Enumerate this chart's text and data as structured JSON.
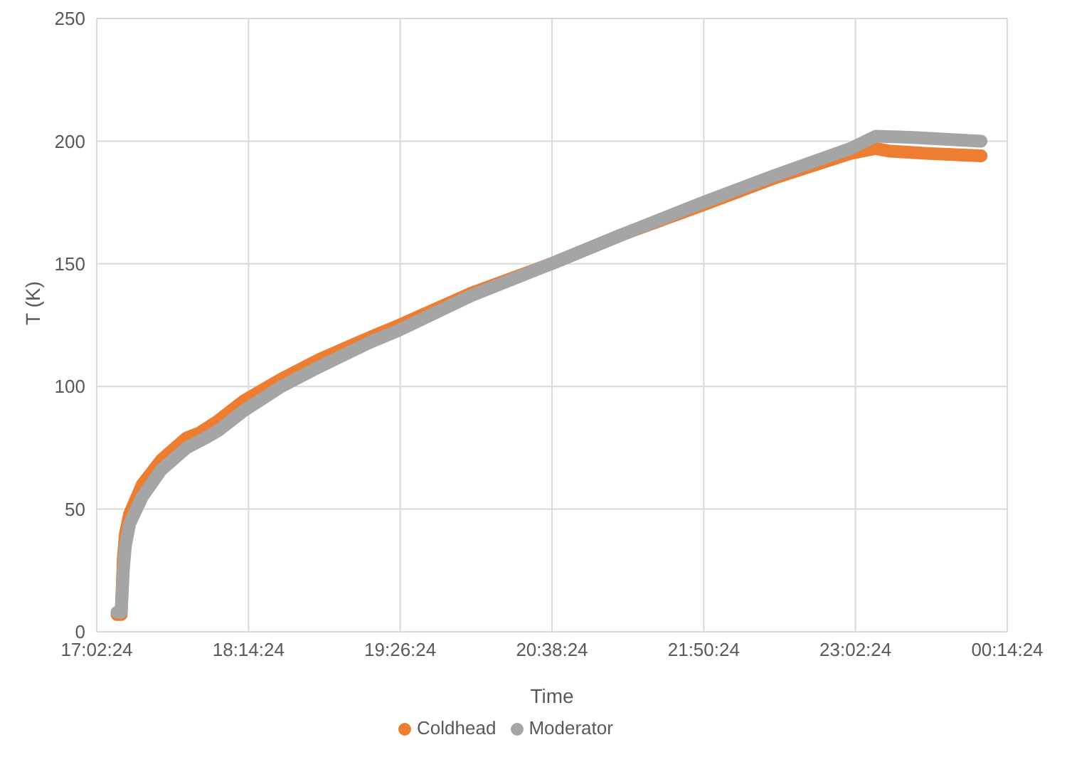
{
  "chart_data": {
    "type": "line",
    "xlabel": "Time",
    "ylabel": "T (K)",
    "xlim": [
      "--01-01T17:02:24",
      "--01-02T00:14:24"
    ],
    "xticks": [
      {
        "value": "--01-01T17:02:24",
        "label": "17:02:24"
      },
      {
        "value": "--01-01T18:14:24",
        "label": "18:14:24"
      },
      {
        "value": "--01-01T19:26:24",
        "label": "19:26:24"
      },
      {
        "value": "--01-01T20:38:24",
        "label": "20:38:24"
      },
      {
        "value": "--01-01T21:50:24",
        "label": "21:50:24"
      },
      {
        "value": "--01-01T23:02:24",
        "label": "23:02:24"
      },
      {
        "value": "--01-02T00:14:24",
        "label": "00:14:24"
      }
    ],
    "ylim": [
      0,
      250
    ],
    "yticks": [
      0,
      50,
      100,
      150,
      200,
      250
    ],
    "grid": true,
    "legend": "bottom",
    "marker": "none",
    "line_style": "solid",
    "series": [
      {
        "name": "Coldhead",
        "color": "#ed7d31",
        "x": [
          "--01-01T17:12",
          "--01-01T17:14",
          "--01-01T17:15",
          "--01-01T17:16",
          "--01-01T17:18",
          "--01-01T17:24",
          "--01-01T17:33",
          "--01-01T17:45",
          "--01-01T17:51",
          "--01-01T18:00",
          "--01-01T18:12",
          "--01-01T18:30",
          "--01-01T18:48",
          "--01-01T19:12",
          "--01-01T19:26",
          "--01-01T20:00",
          "--01-01T20:38",
          "--01-01T21:12",
          "--01-01T21:50",
          "--01-01T22:24",
          "--01-01T23:00",
          "--01-01T23:12",
          "--01-01T23:18",
          "--01-01T23:36",
          "--01-02T00:02"
        ],
        "values": [
          7,
          7,
          30,
          40,
          48,
          60,
          70,
          79,
          81,
          86,
          94,
          103,
          111,
          120,
          125,
          138,
          150,
          162,
          174,
          185,
          195,
          197,
          196,
          195,
          194
        ]
      },
      {
        "name": "Moderator",
        "color": "#a5a5a5",
        "x": [
          "--01-01T17:12",
          "--01-01T17:14",
          "--01-01T17:15",
          "--01-01T17:16",
          "--01-01T17:18",
          "--01-01T17:24",
          "--01-01T17:33",
          "--01-01T17:45",
          "--01-01T17:54",
          "--01-01T18:00",
          "--01-01T18:12",
          "--01-01T18:30",
          "--01-01T18:48",
          "--01-01T19:12",
          "--01-01T19:26",
          "--01-01T20:00",
          "--01-01T20:38",
          "--01-01T21:12",
          "--01-01T21:50",
          "--01-01T22:24",
          "--01-01T23:00",
          "--01-01T23:12",
          "--01-01T23:30",
          "--01-02T00:02"
        ],
        "values": [
          8,
          8,
          25,
          35,
          44,
          55,
          66,
          75,
          79,
          82,
          90,
          100,
          108,
          118,
          123,
          137,
          150,
          162,
          175,
          186,
          197,
          202,
          201.5,
          200
        ]
      }
    ]
  }
}
